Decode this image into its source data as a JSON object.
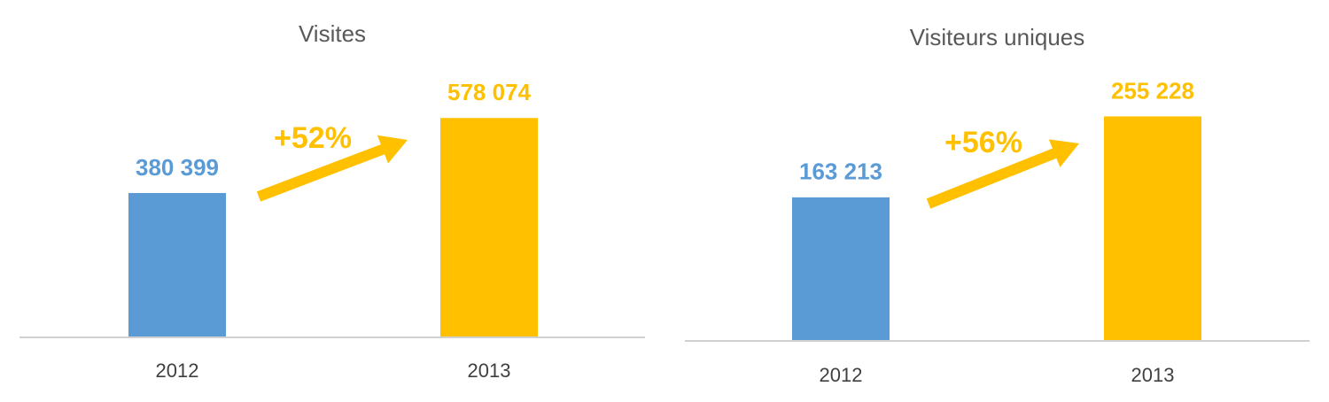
{
  "chart_data": [
    {
      "type": "bar",
      "title": "Visites",
      "categories": [
        "2012",
        "2013"
      ],
      "values": [
        380399,
        578074
      ],
      "value_labels": [
        "380 399",
        "578 074"
      ],
      "colors": [
        "#5b9bd5",
        "#ffc000"
      ],
      "ylim": [
        0,
        700000
      ],
      "annotation": "+52%",
      "annotation_color": "#ffc000"
    },
    {
      "type": "bar",
      "title": "Visiteurs uniques",
      "categories": [
        "2012",
        "2013"
      ],
      "values": [
        163213,
        255228
      ],
      "value_labels": [
        "163 213",
        "255 228"
      ],
      "colors": [
        "#5b9bd5",
        "#ffc000"
      ],
      "ylim": [
        0,
        302000
      ],
      "annotation": "+56%",
      "annotation_color": "#ffc000"
    }
  ]
}
